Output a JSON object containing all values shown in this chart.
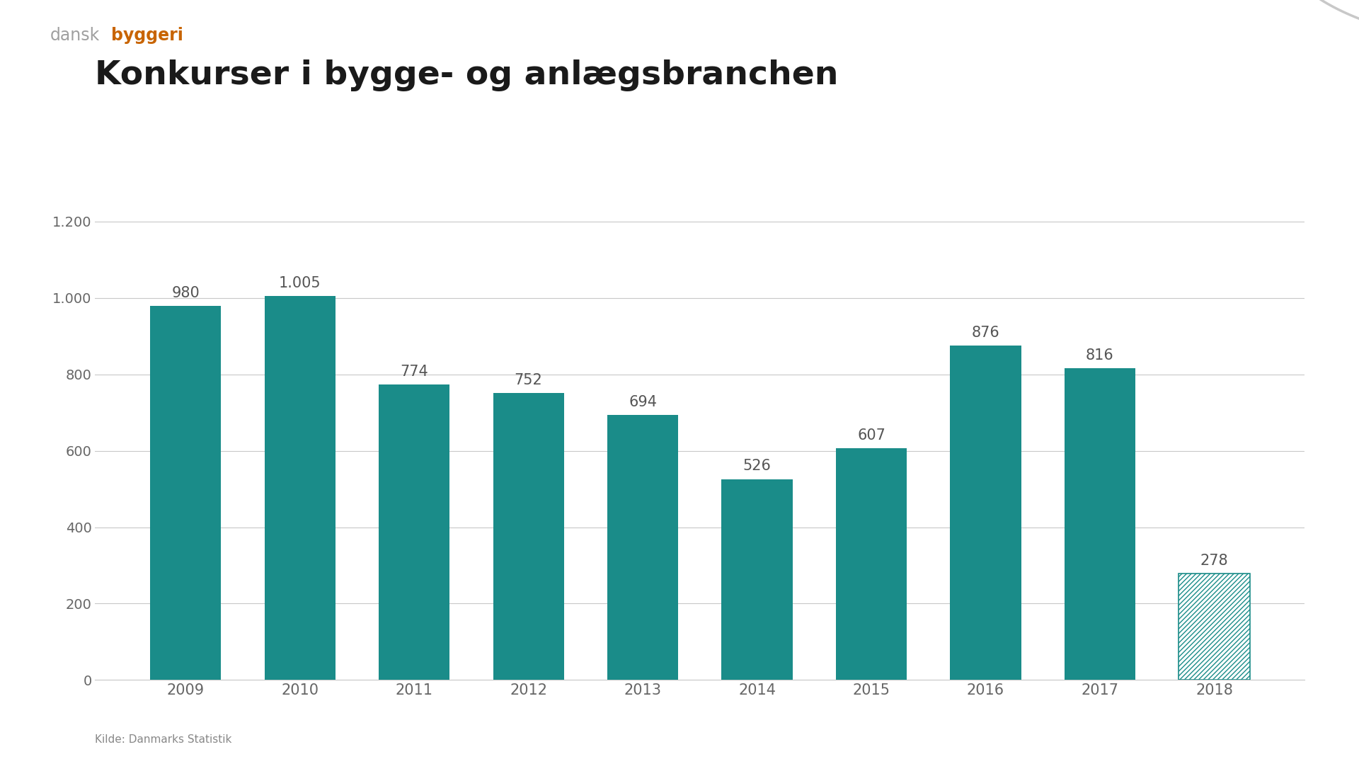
{
  "categories": [
    "2009",
    "2010",
    "2011",
    "2012",
    "2013",
    "2014",
    "2015",
    "2016",
    "2017",
    "2018"
  ],
  "values": [
    980,
    1005,
    774,
    752,
    694,
    526,
    607,
    876,
    816,
    278
  ],
  "value_labels": [
    "980",
    "1.005",
    "774",
    "752",
    "694",
    "526",
    "607",
    "876",
    "816",
    "278"
  ],
  "bar_color": "#1a8c89",
  "hatch_color": "#1a8c89",
  "title": "Konkurser i bygge- og anlægsbranchen",
  "source": "Kilde: Danmarks Statistik",
  "ylim": [
    0,
    1300
  ],
  "yticks": [
    0,
    200,
    400,
    600,
    800,
    1000,
    1200
  ],
  "ytick_labels": [
    "0",
    "200",
    "400",
    "600",
    "800",
    "1.000",
    "1.200"
  ],
  "background_color": "#ffffff",
  "grid_color": "#c8c8c8",
  "tick_label_color": "#666666",
  "title_color": "#1a1a1a",
  "value_label_color": "#555555",
  "logo_dansk_color": "#a0a0a0",
  "logo_byggeri_color": "#c86400",
  "source_color": "#888888"
}
